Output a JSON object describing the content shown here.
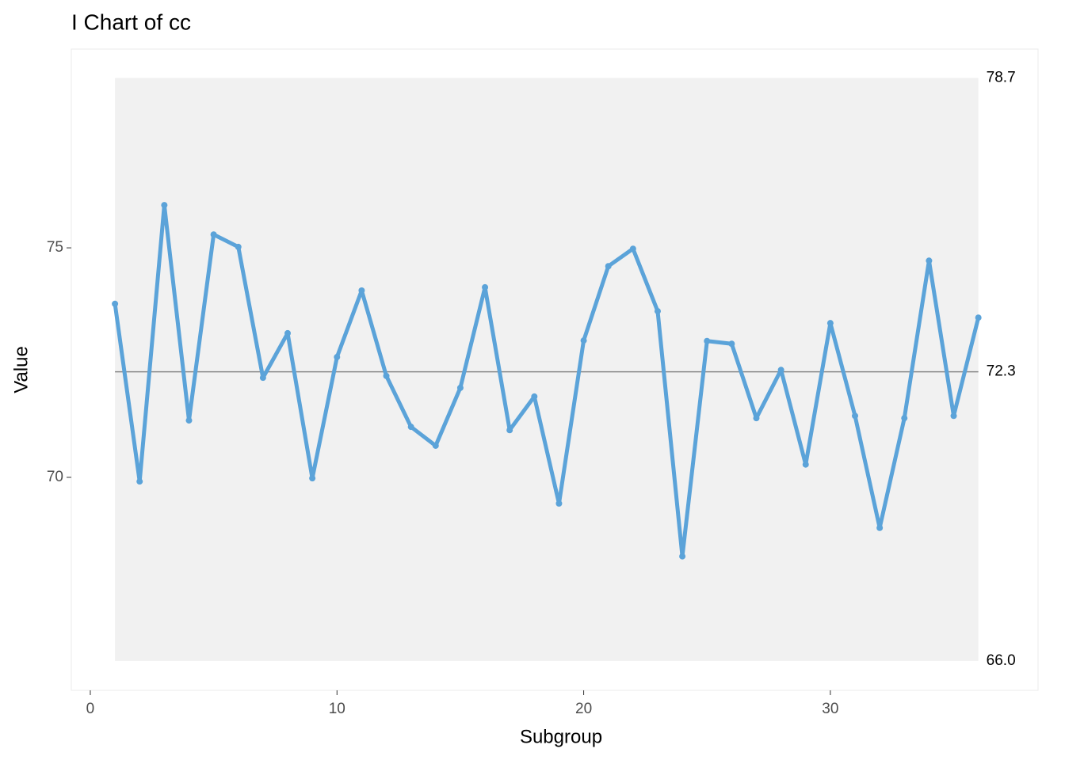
{
  "chart_data": {
    "type": "line",
    "title": "I Chart of cc",
    "xlabel": "Subgroup",
    "ylabel": "Value",
    "x": [
      1,
      2,
      3,
      4,
      5,
      6,
      7,
      8,
      9,
      10,
      11,
      12,
      13,
      14,
      15,
      16,
      17,
      18,
      19,
      20,
      21,
      22,
      23,
      24,
      25,
      26,
      27,
      28,
      29,
      30,
      31,
      32,
      33,
      34,
      35,
      36
    ],
    "values": [
      73.78,
      69.91,
      75.93,
      71.24,
      75.29,
      75.02,
      72.17,
      73.14,
      69.98,
      72.62,
      74.07,
      72.21,
      71.1,
      70.69,
      71.95,
      74.14,
      71.03,
      71.76,
      69.43,
      72.98,
      74.6,
      74.98,
      73.62,
      68.28,
      72.97,
      72.91,
      71.29,
      72.34,
      70.28,
      73.36,
      71.34,
      68.9,
      71.29,
      74.72,
      71.34,
      73.48
    ],
    "color": "#5ba3d9",
    "limits": {
      "ucl": 78.7,
      "cl": 72.3,
      "lcl": {
        "value": 66,
        "label": "66.0"
      }
    },
    "xlim": [
      -0.77,
      38.42
    ],
    "ylim": [
      65.36,
      79.33
    ],
    "xticks": [
      0,
      10,
      20,
      30
    ],
    "yticks": [
      70,
      75
    ],
    "grid": false
  }
}
